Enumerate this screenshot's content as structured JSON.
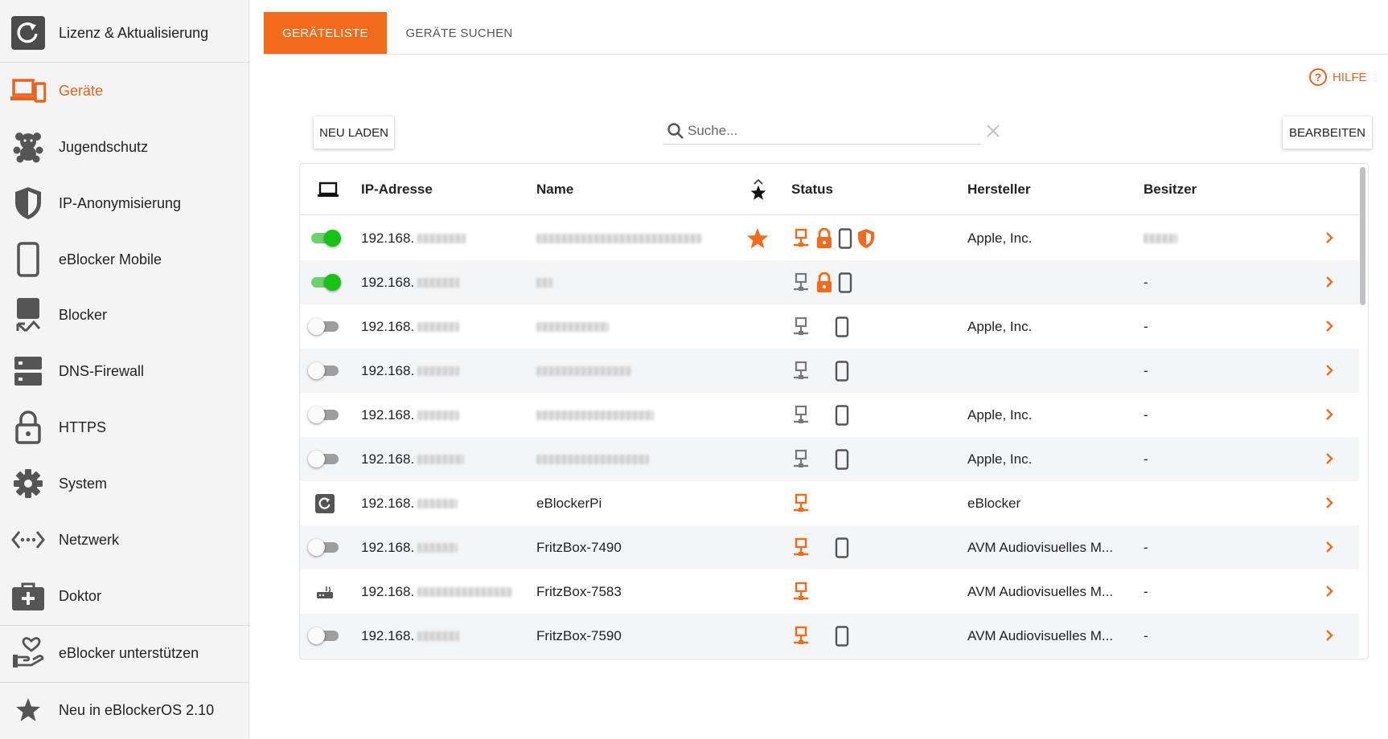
{
  "sidebar": {
    "items": [
      {
        "label": "Lizenz & Aktualisierung",
        "icon": "license-update-icon"
      },
      {
        "label": "Geräte",
        "icon": "devices-icon",
        "active": true
      },
      {
        "label": "Jugendschutz",
        "icon": "teddy-bear-icon"
      },
      {
        "label": "IP-Anonymisierung",
        "icon": "shield-icon"
      },
      {
        "label": "eBlocker Mobile",
        "icon": "smartphone-icon"
      },
      {
        "label": "Blocker",
        "icon": "blocker-icon"
      },
      {
        "label": "DNS-Firewall",
        "icon": "dns-server-icon"
      },
      {
        "label": "HTTPS",
        "icon": "lock-icon"
      },
      {
        "label": "System",
        "icon": "gear-icon"
      },
      {
        "label": "Netzwerk",
        "icon": "network-icon"
      },
      {
        "label": "Doktor",
        "icon": "medical-kit-icon"
      },
      {
        "label": "eBlocker unterstützen",
        "icon": "support-heart-hand-icon"
      },
      {
        "label": "Neu in eBlockerOS 2.10",
        "icon": "star-icon"
      }
    ]
  },
  "tabs": [
    {
      "label": "GERÄTELISTE",
      "active": true
    },
    {
      "label": "GERÄTE SUCHEN",
      "active": false
    }
  ],
  "help_label": "HILFE",
  "toolbar": {
    "reload_label": "NEU LADEN",
    "search_placeholder": "Suche...",
    "edit_label": "BEARBEITEN"
  },
  "table": {
    "headers": {
      "ip": "IP-Adresse",
      "name": "Name",
      "status": "Status",
      "vendor": "Hersteller",
      "owner": "Besitzer"
    },
    "rows": [
      {
        "control": "toggle-on",
        "ip_prefix": "192.168.",
        "name": "",
        "favorite": true,
        "status": [
          "network-orange",
          "lock",
          "mobile",
          "shield"
        ],
        "vendor": "Apple, Inc.",
        "owner": ""
      },
      {
        "control": "toggle-on",
        "ip_prefix": "192.168.",
        "name": "",
        "favorite": false,
        "status": [
          "network-gray",
          "lock",
          "mobile"
        ],
        "vendor": "",
        "owner": "-"
      },
      {
        "control": "toggle-off",
        "ip_prefix": "192.168.",
        "name": "",
        "favorite": false,
        "status": [
          "network-gray",
          "mobile"
        ],
        "vendor": "Apple, Inc.",
        "owner": "-"
      },
      {
        "control": "toggle-off",
        "ip_prefix": "192.168.",
        "name": "",
        "favorite": false,
        "status": [
          "network-gray",
          "mobile"
        ],
        "vendor": "",
        "owner": "-"
      },
      {
        "control": "toggle-off",
        "ip_prefix": "192.168.",
        "name": "",
        "favorite": false,
        "status": [
          "network-gray",
          "mobile"
        ],
        "vendor": "Apple, Inc.",
        "owner": "-"
      },
      {
        "control": "toggle-off",
        "ip_prefix": "192.168.",
        "name": "",
        "favorite": false,
        "status": [
          "network-gray",
          "mobile"
        ],
        "vendor": "Apple, Inc.",
        "owner": "-"
      },
      {
        "control": "eblocker",
        "ip_prefix": "192.168.",
        "name": "eBlockerPi",
        "favorite": false,
        "status": [
          "network-orange"
        ],
        "vendor": "eBlocker",
        "owner": ""
      },
      {
        "control": "toggle-off",
        "ip_prefix": "192.168.",
        "name": "FritzBox-7490",
        "favorite": false,
        "status": [
          "network-orange",
          "mobile"
        ],
        "vendor": "AVM Audiovisuelles M...",
        "owner": "-"
      },
      {
        "control": "router",
        "ip_prefix": "192.168.",
        "name": "FritzBox-7583",
        "favorite": false,
        "status": [
          "network-orange"
        ],
        "vendor": "AVM Audiovisuelles M...",
        "owner": "-"
      },
      {
        "control": "toggle-off",
        "ip_prefix": "192.168.",
        "name": "FritzBox-7590",
        "favorite": false,
        "status": [
          "network-orange",
          "mobile"
        ],
        "vendor": "AVM Audiovisuelles M...",
        "owner": "-"
      }
    ]
  },
  "colors": {
    "accent": "#f26b1d",
    "toggle_on": "#15c215",
    "icon_gray": "#5a5a5a"
  }
}
